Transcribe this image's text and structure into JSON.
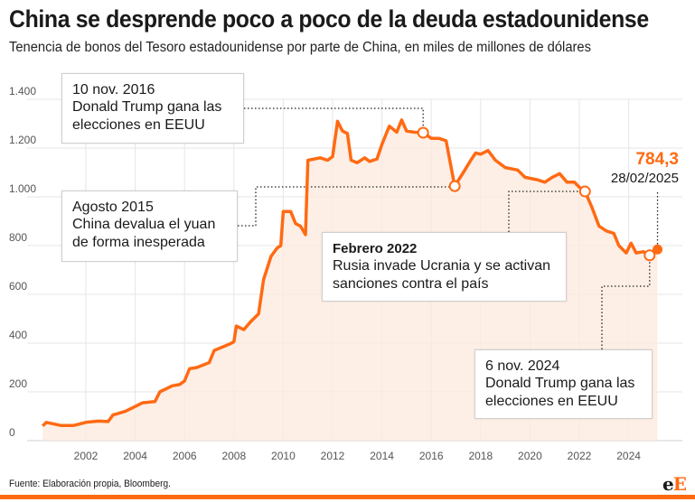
{
  "header": {
    "title": "China se desprende poco a poco de la deuda estadounidense",
    "subtitle": "Tenencia de bonos del Tesoro estadounidense por parte de China, en miles de millones de dólares"
  },
  "chart_data": {
    "type": "area",
    "title": "China se desprende poco a poco de la deuda estadounidense",
    "subtitle": "Tenencia de bonos del Tesoro estadounidense por parte de China, en miles de millones de dólares",
    "xlabel": "",
    "ylabel": "",
    "xlim": [
      2000,
      2025.6
    ],
    "ylim": [
      0,
      1400
    ],
    "grid": true,
    "x_ticks": [
      2002,
      2004,
      2006,
      2008,
      2010,
      2012,
      2014,
      2016,
      2018,
      2020,
      2022,
      2024
    ],
    "x_tick_labels": [
      "2002",
      "2004",
      "2006",
      "2008",
      "2010",
      "2012",
      "2014",
      "2016",
      "2018",
      "2020",
      "2022",
      "2024"
    ],
    "y_ticks": [
      0,
      200,
      400,
      600,
      800,
      1000,
      1200,
      1400
    ],
    "y_tick_labels": [
      "0",
      "200",
      "400",
      "600",
      "800",
      "1.000",
      "1.200",
      "1.400"
    ],
    "colors": {
      "line": "#ff6a13",
      "fill": "#fdeadd",
      "grid": "#e6e6e6"
    },
    "series": [
      {
        "name": "Tenencia de bonos del Tesoro (China)",
        "x": [
          2000.25,
          2000.4,
          2001.0,
          2001.5,
          2002.0,
          2002.5,
          2002.9,
          2003.1,
          2003.6,
          2004.0,
          2004.3,
          2004.8,
          2005.0,
          2005.5,
          2005.8,
          2006.0,
          2006.2,
          2006.5,
          2007.0,
          2007.2,
          2007.8,
          2008.0,
          2008.1,
          2008.4,
          2008.7,
          2009.0,
          2009.2,
          2009.5,
          2009.75,
          2009.9,
          2010.0,
          2010.3,
          2010.5,
          2010.7,
          2010.9,
          2011.0,
          2011.5,
          2011.8,
          2012.0,
          2012.2,
          2012.4,
          2012.6,
          2012.75,
          2013.0,
          2013.3,
          2013.5,
          2013.8,
          2014.0,
          2014.3,
          2014.6,
          2014.8,
          2015.0,
          2015.3,
          2015.67,
          2016.0,
          2016.3,
          2016.6,
          2016.95,
          2017.3,
          2017.6,
          2017.8,
          2018.0,
          2018.3,
          2018.6,
          2019.0,
          2019.5,
          2019.8,
          2020.3,
          2020.6,
          2020.9,
          2021.2,
          2021.5,
          2021.8,
          2022.0,
          2022.23,
          2022.5,
          2022.8,
          2023.1,
          2023.4,
          2023.6,
          2023.9,
          2024.1,
          2024.3,
          2024.6,
          2024.85,
          2025.0,
          2025.17
        ],
        "values": [
          60,
          75,
          62,
          62,
          75,
          80,
          78,
          105,
          120,
          140,
          155,
          160,
          200,
          225,
          230,
          245,
          295,
          300,
          320,
          370,
          395,
          405,
          470,
          455,
          490,
          520,
          660,
          755,
          790,
          800,
          940,
          940,
          890,
          880,
          845,
          1150,
          1160,
          1150,
          1165,
          1310,
          1270,
          1260,
          1150,
          1140,
          1160,
          1145,
          1155,
          1215,
          1290,
          1265,
          1315,
          1270,
          1265,
          1263,
          1240,
          1240,
          1230,
          1044,
          1100,
          1150,
          1180,
          1175,
          1190,
          1150,
          1120,
          1110,
          1080,
          1070,
          1060,
          1080,
          1095,
          1060,
          1060,
          1040,
          1022,
          960,
          880,
          860,
          850,
          800,
          770,
          810,
          770,
          775,
          760,
          775,
          784.3
        ]
      }
    ],
    "markers": [
      {
        "x": 2015.67,
        "y": 1263,
        "style": "open-circle"
      },
      {
        "x": 2016.95,
        "y": 1044,
        "style": "open-circle"
      },
      {
        "x": 2022.23,
        "y": 1022,
        "style": "open-circle"
      },
      {
        "x": 2024.85,
        "y": 760,
        "style": "open-circle"
      },
      {
        "x": 2025.17,
        "y": 784.3,
        "style": "filled-circle"
      }
    ],
    "last_value": {
      "value_label": "784,3",
      "date_label": "28/02/2025"
    },
    "annotations": [
      {
        "date": "10 nov. 2016",
        "text_line1": "Donald Trump gana las",
        "text_line2": "elecciones en EEUU"
      },
      {
        "date": "Agosto 2015",
        "text_line1": "China devalua el yuan",
        "text_line2": "de forma inesperada"
      },
      {
        "date": "Febrero 2022",
        "text_line1": "Rusia invade Ucrania y se activan",
        "text_line2": "sanciones contra el país"
      },
      {
        "date": "6 nov. 2024",
        "text_line1": "Donald Trump gana las",
        "text_line2": "elecciones en EEUU"
      }
    ]
  },
  "footer": {
    "source": "Fuente: Elaboración propia, Bloomberg.",
    "logo_part1": "e",
    "logo_part2": "E"
  }
}
